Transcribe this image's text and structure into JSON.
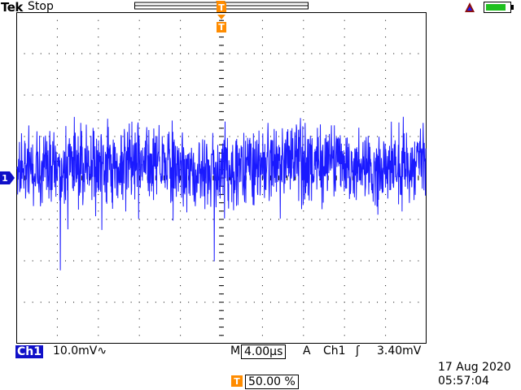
{
  "header": {
    "brand": "Tek",
    "acq_state": "Stop",
    "trigger_marker": "T"
  },
  "status": {
    "channel_label": "Ch1",
    "channel_scale": "10.0mV",
    "coupling_symbol": "∿",
    "timebase_prefix": "M",
    "timebase": "4.00µs",
    "trigger_mode": "A",
    "trigger_source": "Ch1",
    "trigger_slope": "ʃ",
    "trigger_level": "3.40mV",
    "position_marker": "T",
    "position": "50.00 %",
    "date": "17 Aug 2020",
    "time": "05:57:04"
  },
  "channel_marker": "1",
  "colors": {
    "trace": "#1a1aff",
    "accent_orange": "#ff8c00",
    "battery": "#20c020",
    "channel_badge": "#1010c8"
  },
  "chart_data": {
    "type": "line",
    "x_divisions": 10,
    "y_divisions": 8,
    "grid": true,
    "series": [
      {
        "name": "Ch1",
        "description": "noise",
        "baseline_div": 0.3,
        "peak_to_peak_div": 2.0
      }
    ]
  }
}
